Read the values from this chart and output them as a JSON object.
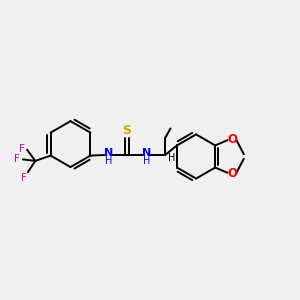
{
  "background_color": "#f0f0f0",
  "bond_color": "#000000",
  "N_color": "#0000ff",
  "S_color": "#ccaa00",
  "O_color": "#ff0000",
  "F_color": "#cc00cc",
  "figsize": [
    3.0,
    3.0
  ],
  "dpi": 100,
  "xlim": [
    0,
    10
  ],
  "ylim": [
    0,
    10
  ]
}
